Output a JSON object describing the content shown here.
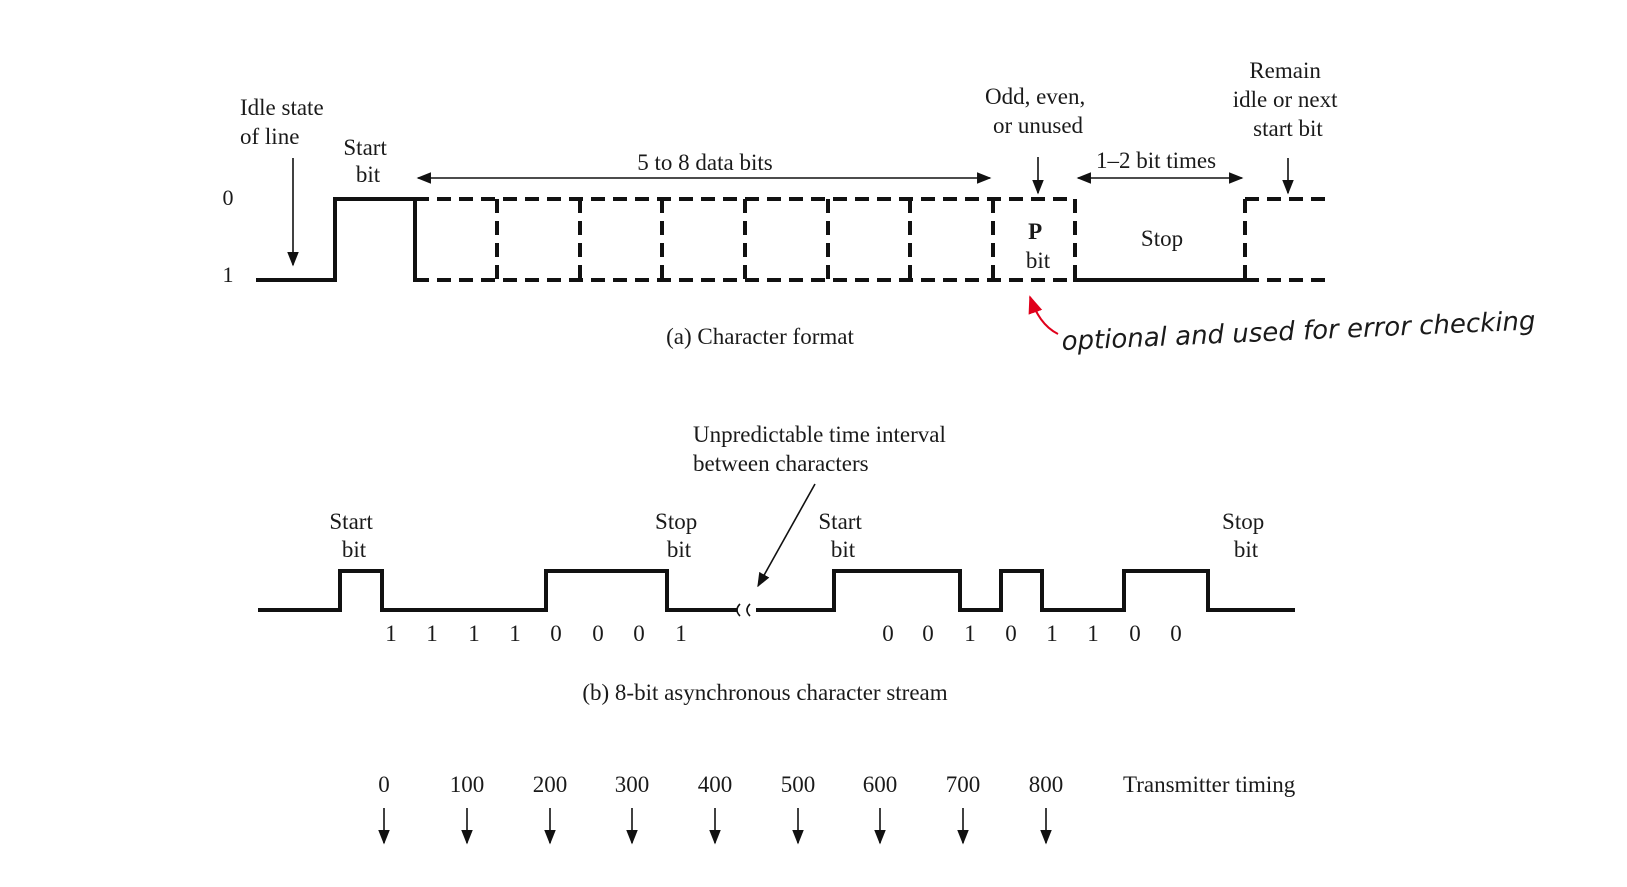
{
  "panel_a": {
    "caption": "(a) Character format",
    "level_0": "0",
    "level_1": "1",
    "idle_label": [
      "Idle state",
      "of line"
    ],
    "start_label": [
      "Start",
      "bit"
    ],
    "data_bits_label": "5 to 8 data bits",
    "parity_note": [
      "Odd, even,",
      "or unused"
    ],
    "parity_box": [
      "P",
      "bit"
    ],
    "stop_duration_label": "1–2 bit times",
    "stop_label": "Stop",
    "remain_label": [
      "Remain",
      "idle or next",
      "start bit"
    ],
    "annotation": "optional and used for error checking",
    "annotation_color": "#e0001b"
  },
  "panel_b": {
    "caption": "(b) 8-bit asynchronous character stream",
    "interval_note": [
      "Unpredictable time interval",
      "between characters"
    ],
    "char1_start_label": [
      "Start",
      "bit"
    ],
    "char1_stop_label": [
      "Stop",
      "bit"
    ],
    "char2_start_label": [
      "Start",
      "bit"
    ],
    "char2_stop_label": [
      "Stop",
      "bit"
    ],
    "char1_bits": [
      "1",
      "1",
      "1",
      "1",
      "0",
      "0",
      "0",
      "1"
    ],
    "char2_bits": [
      "0",
      "0",
      "1",
      "0",
      "1",
      "1",
      "0",
      "0"
    ]
  },
  "timing": {
    "label": "Transmitter timing",
    "ticks": [
      "0",
      "100",
      "200",
      "300",
      "400",
      "500",
      "600",
      "700",
      "800"
    ]
  }
}
